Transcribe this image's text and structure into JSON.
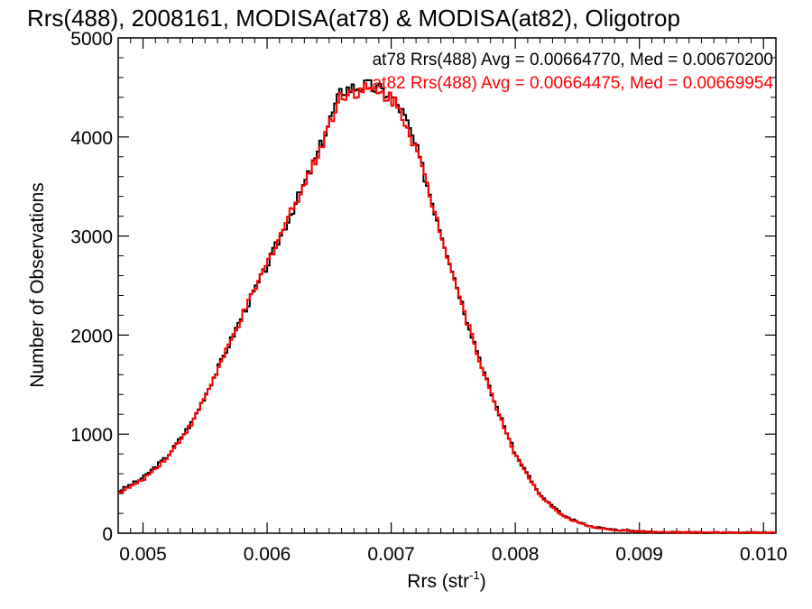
{
  "chart_data": {
    "type": "line",
    "style": "step-histogram",
    "title": "Rrs(488), 2008161, MODISA(at78) & MODISA(at82), Oligotrop",
    "xlabel": "Rrs (str",
    "xlabel_sup": "-1",
    "xlabel_tail": ")",
    "ylabel": "Number of Observations",
    "xlim": [
      0.0048,
      0.0101
    ],
    "ylim": [
      0,
      5000
    ],
    "xticks": [
      0.005,
      0.006,
      0.007,
      0.008,
      0.009,
      0.01
    ],
    "xtick_labels": [
      "0.005",
      "0.006",
      "0.007",
      "0.008",
      "0.009",
      "0.010"
    ],
    "yticks": [
      0,
      1000,
      2000,
      3000,
      4000,
      5000
    ],
    "ytick_labels": [
      "0",
      "1000",
      "2000",
      "3000",
      "4000",
      "5000"
    ],
    "grid": false,
    "legend_placement": "top-right",
    "series": [
      {
        "name": "at78",
        "color": "#000000",
        "annotation": "at78 Rrs(488) Avg = 0.00664770, Med = 0.00670200",
        "x": [
          0.0048,
          0.005,
          0.0052,
          0.0054,
          0.0056,
          0.0058,
          0.006,
          0.0062,
          0.0064,
          0.0065,
          0.0066,
          0.0067,
          0.0068,
          0.0069,
          0.007,
          0.0071,
          0.0072,
          0.0074,
          0.0076,
          0.0078,
          0.008,
          0.0082,
          0.0084,
          0.0086,
          0.0088,
          0.009,
          0.0092,
          0.0095,
          0.0101
        ],
        "y": [
          420,
          560,
          780,
          1130,
          1650,
          2200,
          2700,
          3250,
          3800,
          4150,
          4470,
          4500,
          4520,
          4480,
          4420,
          4230,
          3900,
          3050,
          2200,
          1430,
          800,
          380,
          165,
          70,
          35,
          20,
          10,
          8,
          5
        ]
      },
      {
        "name": "at82",
        "color": "#ff0000",
        "annotation": "at82 Rrs(488) Avg = 0.00664475, Med = 0.00669954",
        "x": [
          0.0048,
          0.005,
          0.0052,
          0.0054,
          0.0056,
          0.0058,
          0.006,
          0.0062,
          0.0064,
          0.0065,
          0.0066,
          0.0067,
          0.0068,
          0.0069,
          0.007,
          0.0071,
          0.0072,
          0.0074,
          0.0076,
          0.0078,
          0.008,
          0.0082,
          0.0084,
          0.0086,
          0.0088,
          0.009,
          0.0092,
          0.0095,
          0.0101
        ],
        "y": [
          400,
          540,
          770,
          1120,
          1640,
          2190,
          2720,
          3270,
          3790,
          4130,
          4430,
          4460,
          4480,
          4440,
          4400,
          4210,
          3880,
          3040,
          2180,
          1420,
          790,
          370,
          160,
          65,
          32,
          18,
          9,
          7,
          5
        ]
      }
    ]
  }
}
